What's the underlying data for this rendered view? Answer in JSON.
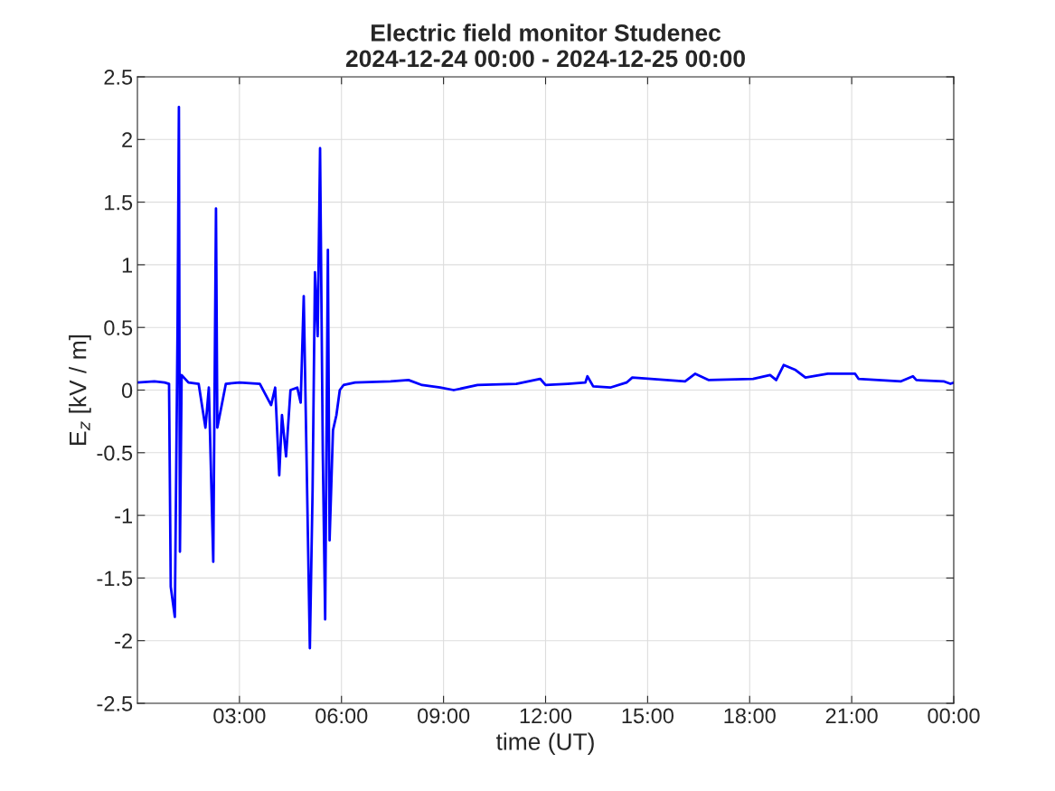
{
  "chart_data": {
    "type": "line",
    "title": "Electric field monitor Studenec\n2024-12-24 00:00 - 2024-12-25 00:00",
    "xlabel": "time (UT)",
    "ylabel": "E$_{z}$ [kV / m]",
    "series": [
      {
        "color": "#0000ff",
        "x": [
          0,
          0.5,
          0.8,
          0.93,
          0.98,
          1.1,
          1.18,
          1.22,
          1.25,
          1.3,
          1.5,
          1.8,
          2.0,
          2.1,
          2.23,
          2.31,
          2.35,
          2.6,
          3.0,
          3.6,
          3.93,
          4.05,
          4.17,
          4.25,
          4.37,
          4.5,
          4.7,
          4.8,
          4.89,
          5.07,
          5.15,
          5.22,
          5.3,
          5.37,
          5.45,
          5.52,
          5.6,
          5.65,
          5.75,
          5.85,
          5.95,
          6.06,
          6.4,
          7.44,
          7.97,
          8.37,
          8.9,
          9.3,
          10.0,
          11.14,
          11.84,
          12.0,
          12.65,
          13.17,
          13.23,
          13.4,
          13.9,
          14.38,
          14.55,
          16.1,
          16.4,
          16.8,
          18.1,
          18.6,
          18.78,
          19.0,
          19.35,
          19.64,
          20.3,
          21.1,
          21.2,
          22.45,
          22.8,
          22.9,
          23.7,
          23.9,
          24.0
        ],
        "values": [
          0.06,
          0.07,
          0.06,
          0.05,
          -1.57,
          -1.81,
          0.5,
          2.26,
          -1.29,
          0.12,
          0.06,
          0.05,
          -0.3,
          0.02,
          -1.37,
          1.45,
          -0.3,
          0.05,
          0.06,
          0.05,
          -0.12,
          0.02,
          -0.68,
          -0.2,
          -0.53,
          0.0,
          0.02,
          -0.1,
          0.75,
          -2.06,
          -0.8,
          0.94,
          0.43,
          1.93,
          -0.5,
          -1.83,
          1.12,
          -1.2,
          -0.32,
          -0.2,
          0.0,
          0.04,
          0.06,
          0.07,
          0.08,
          0.04,
          0.02,
          0.0,
          0.04,
          0.05,
          0.09,
          0.04,
          0.05,
          0.06,
          0.11,
          0.03,
          0.02,
          0.06,
          0.1,
          0.07,
          0.13,
          0.08,
          0.09,
          0.12,
          0.08,
          0.2,
          0.16,
          0.1,
          0.13,
          0.13,
          0.09,
          0.07,
          0.11,
          0.08,
          0.07,
          0.05,
          0.06
        ]
      }
    ],
    "xlim": [
      0,
      24
    ],
    "xticks": [
      {
        "value": 3,
        "label": "03:00"
      },
      {
        "value": 6,
        "label": "06:00"
      },
      {
        "value": 9,
        "label": "09:00"
      },
      {
        "value": 12,
        "label": "12:00"
      },
      {
        "value": 15,
        "label": "15:00"
      },
      {
        "value": 18,
        "label": "18:00"
      },
      {
        "value": 21,
        "label": "21:00"
      },
      {
        "value": 24,
        "label": "00:00"
      }
    ],
    "ylim": [
      -2.5,
      2.5
    ],
    "yticks": [
      -2.5,
      -2,
      -1.5,
      -1,
      -0.5,
      0,
      0.5,
      1,
      1.5,
      2,
      2.5
    ],
    "grid": true,
    "line_style": "solid"
  }
}
